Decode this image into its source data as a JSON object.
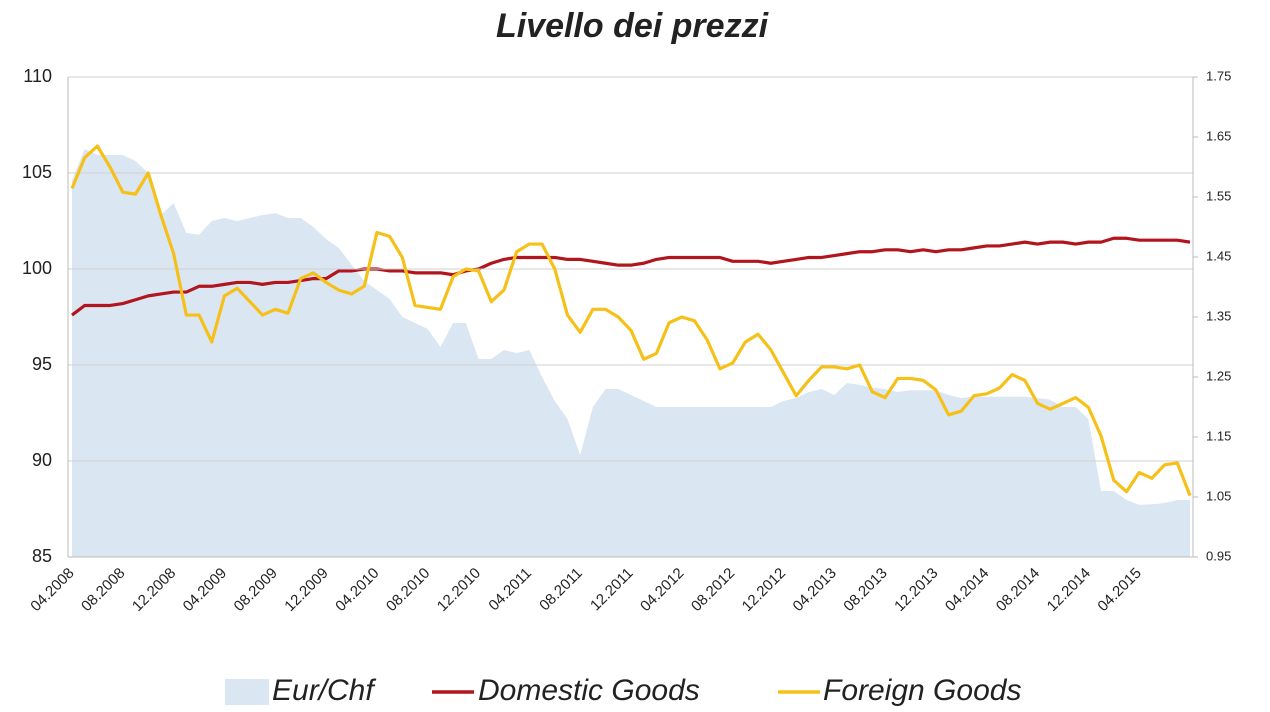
{
  "chart_data": {
    "type": "line",
    "title": "Livello dei prezzi",
    "categories": [
      "04.2008",
      null,
      null,
      null,
      "08.2008",
      null,
      null,
      null,
      "12.2008",
      null,
      null,
      null,
      "04.2009",
      null,
      null,
      null,
      "08.2009",
      null,
      null,
      null,
      "12.2009",
      null,
      null,
      null,
      "04.2010",
      null,
      null,
      null,
      "08.2010",
      null,
      null,
      null,
      "12.2010",
      null,
      null,
      null,
      "04.2011",
      null,
      null,
      null,
      "08.2011",
      null,
      null,
      null,
      "12.2011",
      null,
      null,
      null,
      "04.2012",
      null,
      null,
      null,
      "08.2012",
      null,
      null,
      null,
      "12.2012",
      null,
      null,
      null,
      "04.2013",
      null,
      null,
      null,
      "08.2013",
      null,
      null,
      null,
      "12.2013",
      null,
      null,
      null,
      "04.2014",
      null,
      null,
      null,
      "08.2014",
      null,
      null,
      null,
      "12.2014",
      null,
      null,
      null,
      "04.2015",
      null,
      null,
      null,
      null
    ],
    "series": [
      {
        "name": "Eur/Chf",
        "style": "area",
        "axis": "y2",
        "color": "#dbe6f3",
        "values": [
          1.578,
          1.63,
          1.62,
          1.62,
          1.62,
          1.61,
          1.59,
          1.52,
          1.54,
          1.49,
          1.487,
          1.51,
          1.515,
          1.51,
          1.515,
          1.52,
          1.523,
          1.515,
          1.515,
          1.5,
          1.48,
          1.465,
          1.437,
          1.41,
          1.395,
          1.38,
          1.35,
          1.34,
          1.33,
          1.3,
          1.34,
          1.34,
          1.28,
          1.28,
          1.295,
          1.29,
          1.295,
          1.25,
          1.21,
          1.18,
          1.12,
          1.2,
          1.23,
          1.23,
          1.22,
          1.21,
          1.2,
          1.2,
          1.2,
          1.2,
          1.2,
          1.2,
          1.2,
          1.2,
          1.2,
          1.2,
          1.21,
          1.215,
          1.225,
          1.23,
          1.22,
          1.24,
          1.237,
          1.232,
          1.23,
          1.225,
          1.228,
          1.228,
          1.228,
          1.22,
          1.215,
          1.217,
          1.217,
          1.217,
          1.217,
          1.217,
          1.215,
          1.212,
          1.2,
          1.2,
          1.18,
          1.06,
          1.06,
          1.045,
          1.037,
          1.038,
          1.04,
          1.045,
          1.045
        ]
      },
      {
        "name": "Domestic Goods",
        "style": "line",
        "axis": "y",
        "color": "#b1151d",
        "values": [
          97.6,
          98.1,
          98.1,
          98.1,
          98.2,
          98.4,
          98.6,
          98.7,
          98.8,
          98.8,
          99.1,
          99.1,
          99.2,
          99.3,
          99.3,
          99.2,
          99.3,
          99.3,
          99.4,
          99.5,
          99.5,
          99.9,
          99.9,
          100.0,
          100.0,
          99.9,
          99.9,
          99.8,
          99.8,
          99.8,
          99.7,
          99.9,
          100.0,
          100.3,
          100.5,
          100.6,
          100.6,
          100.6,
          100.6,
          100.5,
          100.5,
          100.4,
          100.3,
          100.2,
          100.2,
          100.3,
          100.5,
          100.6,
          100.6,
          100.6,
          100.6,
          100.6,
          100.4,
          100.4,
          100.4,
          100.3,
          100.4,
          100.5,
          100.6,
          100.6,
          100.7,
          100.8,
          100.9,
          100.9,
          101.0,
          101.0,
          100.9,
          101.0,
          100.9,
          101.0,
          101.0,
          101.1,
          101.2,
          101.2,
          101.3,
          101.4,
          101.3,
          101.4,
          101.4,
          101.3,
          101.4,
          101.4,
          101.6,
          101.6,
          101.5,
          101.5,
          101.5,
          101.5,
          101.4
        ]
      },
      {
        "name": "Foreign Goods",
        "style": "line",
        "axis": "y",
        "color": "#f5c018",
        "values": [
          104.2,
          105.8,
          106.4,
          105.3,
          104.0,
          103.9,
          105.0,
          102.8,
          100.8,
          97.6,
          97.6,
          96.2,
          98.6,
          99.0,
          98.3,
          97.6,
          97.9,
          97.7,
          99.5,
          99.8,
          99.3,
          98.9,
          98.7,
          99.1,
          101.9,
          101.7,
          100.6,
          98.1,
          98.0,
          97.9,
          99.6,
          100.0,
          99.9,
          98.3,
          98.9,
          100.9,
          101.3,
          101.3,
          100.0,
          97.6,
          96.7,
          97.9,
          97.9,
          97.5,
          96.8,
          95.3,
          95.6,
          97.2,
          97.5,
          97.3,
          96.3,
          94.8,
          95.1,
          96.2,
          96.6,
          95.8,
          94.6,
          93.4,
          94.2,
          94.9,
          94.9,
          94.8,
          95.0,
          93.6,
          93.3,
          94.3,
          94.3,
          94.2,
          93.7,
          92.4,
          92.6,
          93.4,
          93.5,
          93.8,
          94.5,
          94.2,
          93.0,
          92.7,
          93.0,
          93.3,
          92.8,
          91.3,
          89.0,
          88.4,
          89.4,
          89.1,
          89.8,
          89.9,
          88.2
        ]
      }
    ],
    "ylim": [
      85,
      110
    ],
    "yticks": [
      85,
      90,
      95,
      100,
      105,
      110
    ],
    "y2lim": [
      0.95,
      1.75
    ],
    "y2ticks": [
      0.95,
      1.05,
      1.15,
      1.25,
      1.35,
      1.45,
      1.55,
      1.65,
      1.75
    ],
    "grid": true,
    "legend": "bottom"
  }
}
